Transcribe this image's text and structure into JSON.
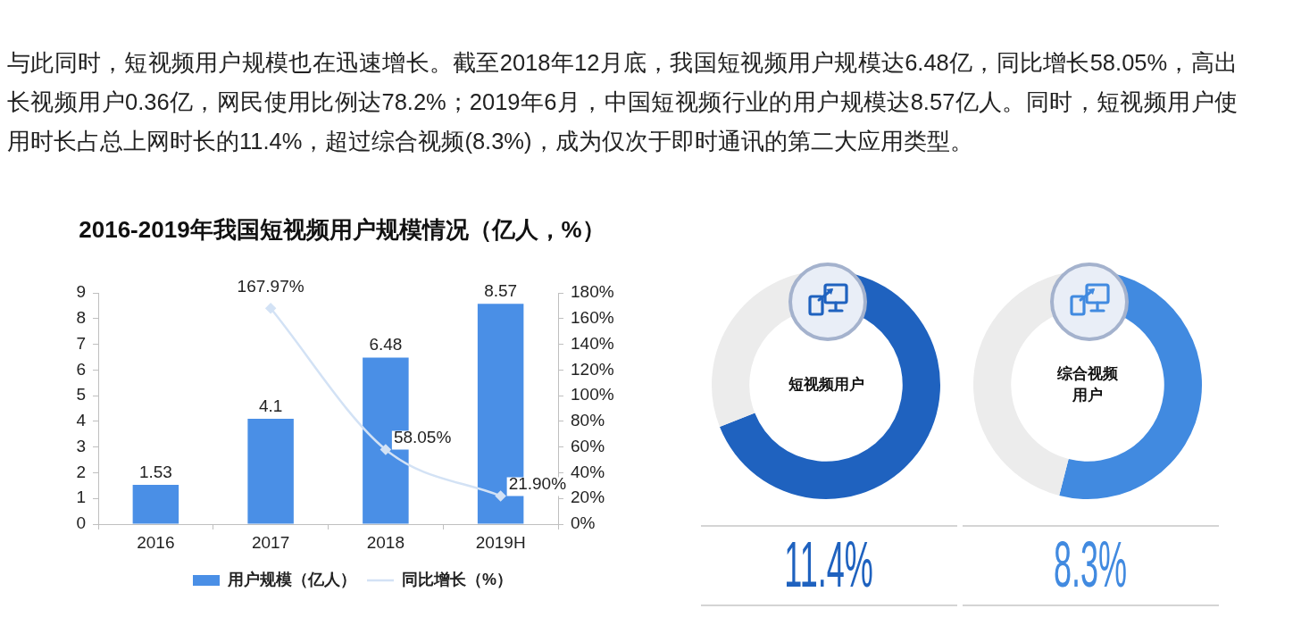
{
  "chart_data": [
    {
      "type": "other",
      "annotations": [
        "与此同时，短视频用户规模也在迅速增长。截至2018年12月底，我国短视频用户规模达6.48亿，同比增长58.05%，高出长视频用户0.36亿，网民使用比例达78.2%；2019年6月，中国短视频行业的用户规模达8.57亿人。同时，短视频用户使用时长占总上网时长的11.4%，超过综合视频(8.3%)，成为仅次于即时通讯的第二大应用类型。"
      ]
    },
    {
      "type": "bar",
      "title": "2016-2019年我国短视频用户规模情况（亿人，%）",
      "categories": [
        "2016",
        "2017",
        "2018",
        "2019H"
      ],
      "series": [
        {
          "name": "用户规模（亿人）",
          "color": "#4a8fe6",
          "values": [
            1.53,
            4.1,
            6.48,
            8.57
          ],
          "value_labels": [
            "1.53",
            "4.1",
            "6.48",
            "8.57"
          ]
        },
        {
          "name": "同比增长（%）",
          "type": "line",
          "axis": "y2",
          "color": "#d3e2f5",
          "marker": "diamond",
          "values": [
            null,
            167.97,
            58.05,
            21.9
          ],
          "value_labels": [
            null,
            "167.97%",
            "58.05%",
            "21.90%"
          ]
        }
      ],
      "ylim": [
        0,
        9
      ],
      "yticks": [
        0,
        1,
        2,
        3,
        4,
        5,
        6,
        7,
        8,
        9
      ],
      "y2lim": [
        0,
        180
      ],
      "y2ticks": [
        {
          "value": 0,
          "label": "0%"
        },
        {
          "value": 20,
          "label": "20%"
        },
        {
          "value": 40,
          "label": "40%"
        },
        {
          "value": 60,
          "label": "60%"
        },
        {
          "value": 80,
          "label": "80%"
        },
        {
          "value": 100,
          "label": "100%"
        },
        {
          "value": 120,
          "label": "120%"
        },
        {
          "value": 140,
          "label": "140%"
        },
        {
          "value": 160,
          "label": "160%"
        },
        {
          "value": 180,
          "label": "180%"
        }
      ],
      "grid": false,
      "legend": "bottom"
    },
    {
      "type": "donut",
      "title": "短视频用户",
      "categories": [
        null,
        null
      ],
      "values": [
        69,
        31
      ],
      "colors": [
        "#1f62bf",
        "#ececec"
      ],
      "annotations": [
        "11.4%"
      ]
    },
    {
      "type": "donut",
      "title": "综合视频用户",
      "categories": [
        null,
        null
      ],
      "values": [
        54,
        46
      ],
      "colors": [
        "#418ae0",
        "#ececec"
      ],
      "annotations": [
        "8.3%"
      ]
    }
  ]
}
